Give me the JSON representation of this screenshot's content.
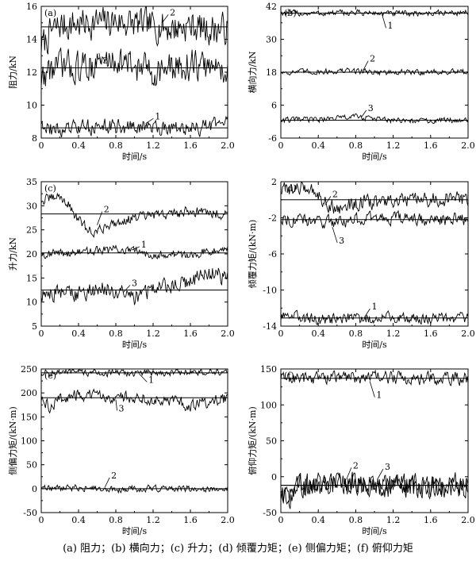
{
  "caption": "(a) 阻力；(b) 横向力；(c) 升力；(d) 倾覆力矩；(e) 侧偏力矩；(f) 俯仰力矩",
  "chart_data": [
    {
      "type": "line",
      "panel": "(a)",
      "xlabel": "时间/s",
      "ylabel": "阻力/kN",
      "xlim": [
        0,
        2.0
      ],
      "ylim": [
        8,
        17
      ],
      "xticks": [
        "0",
        "0.4",
        "0.8",
        "1.2",
        "1.6",
        "2.0"
      ],
      "yticks": [
        "8",
        "10",
        "12",
        "14",
        "16"
      ],
      "series": [
        {
          "name": "2",
          "mean": 15.6,
          "noise": 0.6,
          "x": [
            0,
            0.05,
            0.1,
            0.2,
            0.4,
            0.6,
            0.8,
            1.0,
            1.2,
            1.4,
            1.6,
            1.8,
            2.0
          ],
          "y": [
            14.3,
            14.6,
            15.2,
            15.7,
            15.8,
            15.9,
            16.0,
            15.8,
            15.7,
            15.5,
            15.7,
            15.4,
            15.5
          ]
        },
        {
          "name": "3",
          "mean": 12.8,
          "noise": 0.6,
          "x": [
            0,
            0.05,
            0.1,
            0.2,
            0.4,
            0.6,
            0.8,
            1.0,
            1.2,
            1.4,
            1.6,
            1.8,
            2.0
          ],
          "y": [
            12.0,
            12.4,
            12.7,
            12.9,
            12.8,
            13.1,
            13.4,
            12.9,
            12.6,
            12.7,
            13.0,
            12.8,
            12.8
          ]
        },
        {
          "name": "1",
          "mean": 8.7,
          "noise": 0.3,
          "x": [
            0,
            0.05,
            0.1,
            0.2,
            0.4,
            0.6,
            0.8,
            1.0,
            1.2,
            1.4,
            1.6,
            1.8,
            2.0
          ],
          "y": [
            9.2,
            8.9,
            8.6,
            8.5,
            8.7,
            8.8,
            8.8,
            8.7,
            8.8,
            8.7,
            8.6,
            8.8,
            8.9
          ]
        }
      ],
      "labels": [
        {
          "text": "2",
          "x": 1.38,
          "y": 16.6,
          "tx": 1.3,
          "ty": 15.9
        },
        {
          "text": "3",
          "x": 0.66,
          "y": 13.3,
          "tx": 0.62,
          "ty": 13.8
        },
        {
          "text": "1",
          "x": 1.22,
          "y": 9.5,
          "tx": 1.12,
          "ty": 9.0
        }
      ]
    },
    {
      "type": "line",
      "panel": "(b)",
      "xlabel": "时间/s",
      "ylabel": "横向力/kN",
      "xlim": [
        0,
        2.0
      ],
      "ylim": [
        -6,
        42
      ],
      "xticks": [
        "0",
        "0.4",
        "0.8",
        "1.2",
        "1.6",
        "2.0"
      ],
      "yticks": [
        "-6",
        "6",
        "18",
        "30",
        "42"
      ],
      "series": [
        {
          "name": "1",
          "mean": 39.5,
          "noise": 0.6,
          "x": [
            0,
            0.4,
            0.8,
            1.2,
            1.6,
            2.0
          ],
          "y": [
            39.6,
            39.4,
            39.7,
            39.3,
            39.5,
            39.8
          ]
        },
        {
          "name": "2",
          "mean": 18.0,
          "noise": 0.6,
          "x": [
            0,
            0.4,
            0.8,
            1.2,
            1.6,
            2.0
          ],
          "y": [
            18.0,
            18.2,
            18.5,
            17.8,
            18.1,
            18.0
          ]
        },
        {
          "name": "3",
          "mean": 0.5,
          "noise": 0.6,
          "x": [
            0,
            0.4,
            0.8,
            1.2,
            1.6,
            2.0
          ],
          "y": [
            0.5,
            0.8,
            1.8,
            0.3,
            0.2,
            0.9
          ]
        }
      ],
      "labels": [
        {
          "text": "1",
          "x": 1.14,
          "y": 35.0,
          "tx": 1.08,
          "ty": 39.2
        },
        {
          "text": "2",
          "x": 0.95,
          "y": 23.0,
          "tx": 0.88,
          "ty": 18.7
        },
        {
          "text": "3",
          "x": 0.93,
          "y": 5.0,
          "tx": 0.86,
          "ty": 1.6
        }
      ]
    },
    {
      "type": "line",
      "panel": "(c)",
      "xlabel": "时间/s",
      "ylabel": "升力/kN",
      "xlim": [
        0,
        2.0
      ],
      "ylim": [
        5,
        35
      ],
      "xticks": [
        "0",
        "0.4",
        "0.8",
        "1.2",
        "1.6",
        "2.0"
      ],
      "yticks": [
        "5",
        "10",
        "15",
        "20",
        "25",
        "30",
        "35"
      ],
      "series": [
        {
          "name": "2",
          "mean": 28.3,
          "noise": 0.6,
          "x": [
            0,
            0.1,
            0.2,
            0.3,
            0.4,
            0.5,
            0.6,
            0.7,
            0.8,
            0.9,
            1.0,
            1.2,
            1.4,
            1.6,
            1.8,
            2.0
          ],
          "y": [
            31.0,
            31.5,
            32.0,
            30.0,
            27.0,
            25.0,
            24.5,
            26.0,
            26.5,
            27.0,
            27.5,
            28.0,
            28.3,
            29.0,
            28.6,
            28.2
          ]
        },
        {
          "name": "1",
          "mean": 20.2,
          "noise": 0.5,
          "x": [
            0,
            0.4,
            0.8,
            1.2,
            1.6,
            2.0
          ],
          "y": [
            20.0,
            20.3,
            21.0,
            20.0,
            19.8,
            21.5
          ]
        },
        {
          "name": "3",
          "mean": 12.5,
          "noise": 1.0,
          "x": [
            0,
            0.2,
            0.4,
            0.6,
            0.8,
            1.0,
            1.2,
            1.4,
            1.6,
            1.8,
            2.0
          ],
          "y": [
            11.5,
            12.0,
            11.5,
            13.0,
            12.0,
            11.0,
            13.0,
            13.5,
            14.0,
            16.0,
            15.0
          ]
        }
      ],
      "labels": [
        {
          "text": "2",
          "x": 0.67,
          "y": 29.3,
          "tx": 0.6,
          "ty": 26.0
        },
        {
          "text": "1",
          "x": 1.07,
          "y": 22.0,
          "tx": 0.97,
          "ty": 20.8
        },
        {
          "text": "3",
          "x": 0.97,
          "y": 14.0,
          "tx": 0.88,
          "ty": 12.0
        }
      ]
    },
    {
      "type": "line",
      "panel": "(d)",
      "xlabel": "时间/s",
      "ylabel": "倾覆力矩/(kN·m)",
      "xlim": [
        0,
        2.0
      ],
      "ylim": [
        -14,
        2
      ],
      "xticks": [
        "0",
        "0.4",
        "0.8",
        "1.2",
        "1.6",
        "2.0"
      ],
      "yticks": [
        "-14",
        "-10",
        "-6",
        "-2",
        "2"
      ],
      "series": [
        {
          "name": "2",
          "mean": 0.0,
          "noise": 0.45,
          "x": [
            0,
            0.1,
            0.2,
            0.3,
            0.4,
            0.5,
            0.6,
            0.8,
            1.2,
            1.6,
            2.0
          ],
          "y": [
            1.0,
            1.3,
            1.2,
            1.4,
            0.6,
            -0.5,
            -1.0,
            -0.4,
            -0.2,
            0.0,
            0.1
          ]
        },
        {
          "name": "3",
          "mean": -2.2,
          "noise": 0.4,
          "x": [
            0,
            0.4,
            0.8,
            1.2,
            1.6,
            2.0
          ],
          "y": [
            -2.0,
            -2.5,
            -2.2,
            -2.0,
            -2.3,
            -2.1
          ]
        },
        {
          "name": "1",
          "mean": -13.1,
          "noise": 0.35,
          "x": [
            0,
            0.1,
            0.2,
            0.4,
            0.8,
            1.2,
            1.6,
            2.0
          ],
          "y": [
            -13.2,
            -12.6,
            -13.0,
            -13.3,
            -13.2,
            -13.0,
            -13.1,
            -13.0
          ]
        }
      ],
      "labels": [
        {
          "text": "2",
          "x": 0.55,
          "y": 0.65,
          "tx": 0.47,
          "ty": -0.6
        },
        {
          "text": "3",
          "x": 0.62,
          "y": -4.5,
          "tx": 0.55,
          "ty": -3.0
        },
        {
          "text": "1",
          "x": 0.97,
          "y": -11.8,
          "tx": 0.9,
          "ty": -12.9
        }
      ]
    },
    {
      "type": "line",
      "panel": "(e)",
      "xlabel": "时间/s",
      "ylabel": "侧偏力矩/(kN·m)",
      "xlim": [
        0,
        2.0
      ],
      "ylim": [
        -50,
        250
      ],
      "xticks": [
        "0",
        "0.4",
        "0.8",
        "1.2",
        "1.6",
        "2.0"
      ],
      "yticks": [
        "-50",
        "0",
        "50",
        "100",
        "150",
        "200",
        "250"
      ],
      "series": [
        {
          "name": "1",
          "mean": 242,
          "noise": 4,
          "x": [
            0,
            0.4,
            0.8,
            1.2,
            1.6,
            2.0
          ],
          "y": [
            242,
            243,
            241,
            242,
            243,
            242
          ]
        },
        {
          "name": "3",
          "mean": 190,
          "noise": 7,
          "x": [
            0,
            0.1,
            0.2,
            0.4,
            0.8,
            1.2,
            1.6,
            2.0
          ],
          "y": [
            185,
            170,
            188,
            195,
            192,
            188,
            175,
            188
          ]
        },
        {
          "name": "2",
          "mean": 0,
          "noise": 4,
          "x": [
            0,
            0.4,
            0.8,
            1.2,
            1.6,
            2.0
          ],
          "y": [
            0,
            2,
            -2,
            1,
            -1,
            0
          ]
        }
      ],
      "labels": [
        {
          "text": "1",
          "x": 1.15,
          "y": 228,
          "tx": 1.05,
          "ty": 240
        },
        {
          "text": "3",
          "x": 0.83,
          "y": 168,
          "tx": 0.8,
          "ty": 186
        },
        {
          "text": "2",
          "x": 0.75,
          "y": 28,
          "tx": 0.68,
          "ty": 2
        }
      ]
    },
    {
      "type": "line",
      "panel": "(f)",
      "xlabel": "时间/s",
      "ylabel": "俯仰力矩/(kN·m)",
      "xlim": [
        0,
        2.0
      ],
      "ylim": [
        -50,
        150
      ],
      "xticks": [
        "0",
        "0.4",
        "0.8",
        "1.2",
        "1.6",
        "2.0"
      ],
      "yticks": [
        "-50",
        "0",
        "50",
        "100",
        "150"
      ],
      "series": [
        {
          "name": "1",
          "mean": 137,
          "noise": 5,
          "x": [
            0,
            0.4,
            0.8,
            1.2,
            1.6,
            2.0
          ],
          "y": [
            137,
            138,
            139,
            138,
            136,
            137
          ]
        },
        {
          "name": "2",
          "mean": -12,
          "noise": 9,
          "x": [
            0,
            0.1,
            0.2,
            0.4,
            0.8,
            1.2,
            1.6,
            2.0
          ],
          "y": [
            -30,
            -25,
            -15,
            -10,
            -12,
            -10,
            -15,
            -12
          ]
        },
        {
          "name": "3",
          "mean": -12,
          "noise": 9,
          "x": [
            0,
            0.1,
            0.2,
            0.4,
            0.8,
            1.2,
            1.6,
            2.0
          ],
          "y": [
            -20,
            -30,
            -10,
            -12,
            -8,
            -15,
            -12,
            -10
          ]
        }
      ],
      "labels": [
        {
          "text": "1",
          "x": 1.02,
          "y": 114,
          "tx": 0.95,
          "ty": 133
        },
        {
          "text": "2",
          "x": 0.77,
          "y": 16,
          "tx": 0.7,
          "ty": -4
        },
        {
          "text": "3",
          "x": 1.11,
          "y": 14,
          "tx": 1.03,
          "ty": -4
        }
      ]
    }
  ]
}
